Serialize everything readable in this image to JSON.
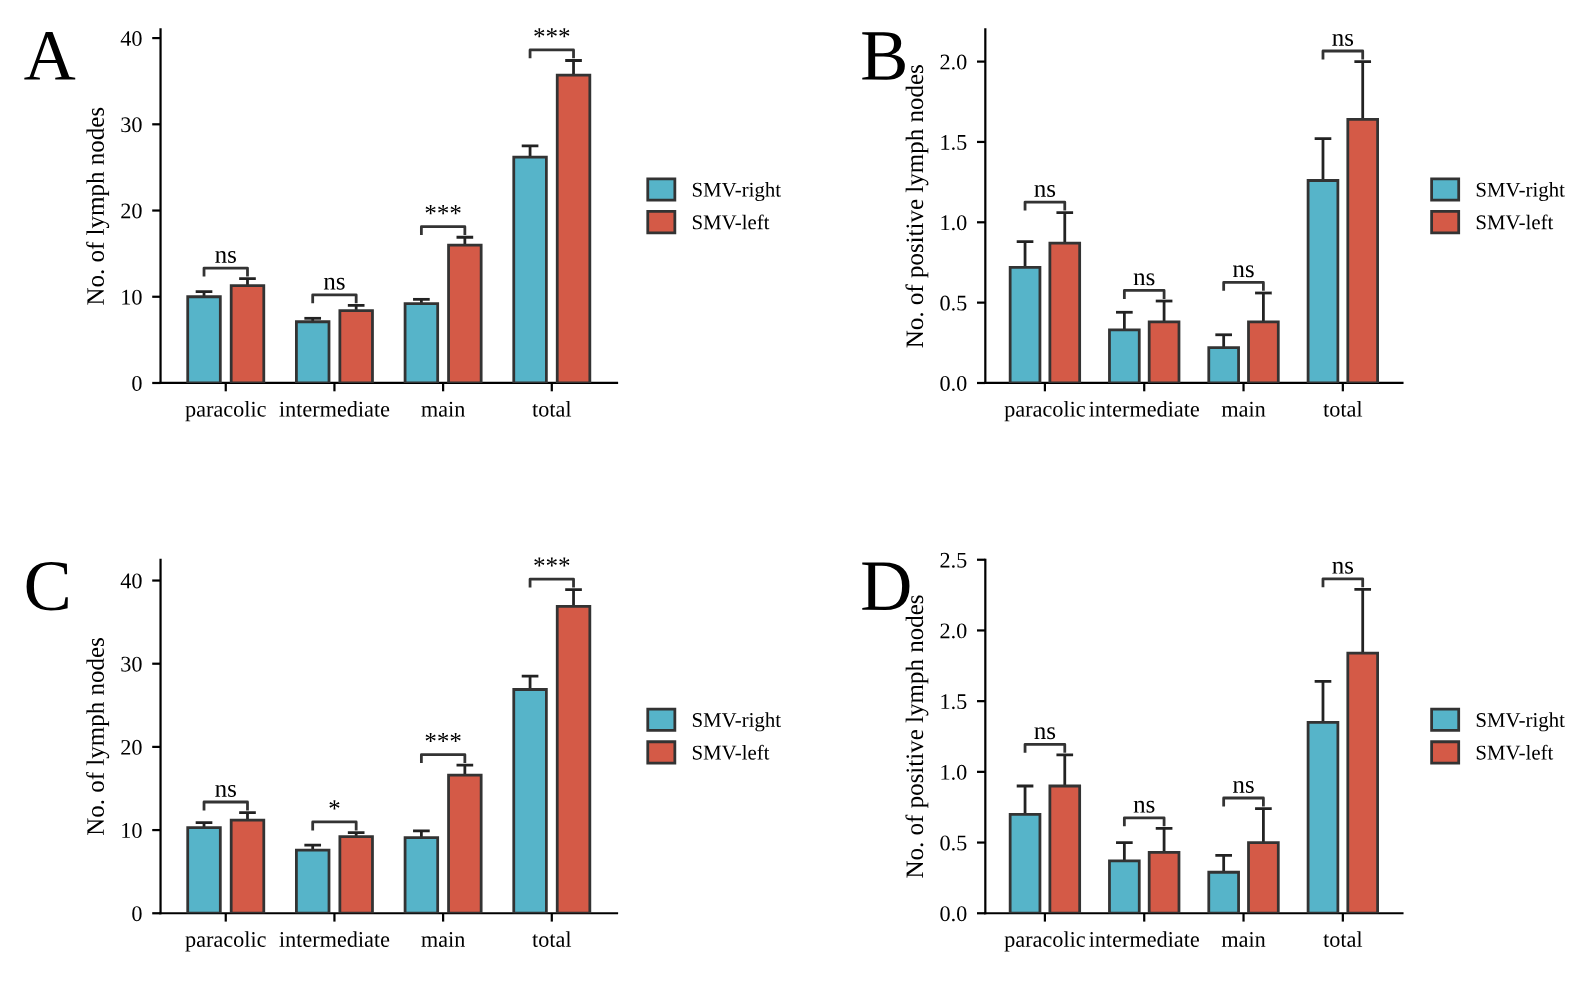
{
  "chart_data": [
    {
      "type": "bar",
      "title": "A",
      "ylabel": "No. of lymph nodes",
      "categories": [
        "paracolic",
        "intermediate",
        "main",
        "total"
      ],
      "ylim": [
        0,
        41
      ],
      "yticks": [
        0,
        10,
        20,
        30,
        40
      ],
      "grid": false,
      "legend": "right",
      "series": [
        {
          "name": "SMV-right",
          "color": "#56b4c9",
          "values": [
            10.0,
            7.1,
            9.2,
            26.2
          ],
          "errors": [
            0.6,
            0.4,
            0.5,
            1.3
          ]
        },
        {
          "name": "SMV-left",
          "color": "#d45a47",
          "values": [
            11.3,
            8.4,
            16.0,
            35.7
          ],
          "errors": [
            0.8,
            0.6,
            0.9,
            1.7
          ]
        }
      ],
      "annotations": [
        "ns",
        "ns",
        "***",
        "***"
      ]
    },
    {
      "type": "bar",
      "title": "B",
      "ylabel": "No. of positive lymph nodes",
      "categories": [
        "paracolic",
        "intermediate",
        "main",
        "total"
      ],
      "ylim": [
        0,
        2.2
      ],
      "yticks": [
        {
          "value": 0,
          "label": "0.0"
        },
        {
          "value": 0.5,
          "label": "0.5"
        },
        {
          "value": 1,
          "label": "1.0"
        },
        {
          "value": 1.5,
          "label": "1.5"
        },
        {
          "value": 2,
          "label": "2.0"
        }
      ],
      "grid": false,
      "legend": "right",
      "series": [
        {
          "name": "SMV-right",
          "color": "#56b4c9",
          "values": [
            0.72,
            0.33,
            0.22,
            1.26
          ],
          "errors": [
            0.16,
            0.11,
            0.08,
            0.26
          ]
        },
        {
          "name": "SMV-left",
          "color": "#d45a47",
          "values": [
            0.87,
            0.38,
            0.38,
            1.64
          ],
          "errors": [
            0.19,
            0.13,
            0.18,
            0.36
          ]
        }
      ],
      "annotations": [
        "ns",
        "ns",
        "ns",
        "ns"
      ]
    },
    {
      "type": "bar",
      "title": "C",
      "ylabel": "No. of lymph nodes",
      "categories": [
        "paracolic",
        "intermediate",
        "main",
        "total"
      ],
      "ylim": [
        0,
        42.5
      ],
      "yticks": [
        0,
        10,
        20,
        30,
        40
      ],
      "grid": false,
      "legend": "right",
      "series": [
        {
          "name": "SMV-right",
          "color": "#56b4c9",
          "values": [
            10.3,
            7.6,
            9.1,
            26.9
          ],
          "errors": [
            0.6,
            0.6,
            0.8,
            1.6
          ]
        },
        {
          "name": "SMV-left",
          "color": "#d45a47",
          "values": [
            11.2,
            9.2,
            16.6,
            36.9
          ],
          "errors": [
            0.9,
            0.5,
            1.2,
            2.0
          ]
        }
      ],
      "annotations": [
        "ns",
        "*",
        "***",
        "***"
      ]
    },
    {
      "type": "bar",
      "title": "D",
      "ylabel": "No. of positive lymph nodes",
      "categories": [
        "paracolic",
        "intermediate",
        "main",
        "total"
      ],
      "ylim": [
        0,
        2.5
      ],
      "yticks": [
        {
          "value": 0,
          "label": "0.0"
        },
        {
          "value": 0.5,
          "label": "0.5"
        },
        {
          "value": 1,
          "label": "1.0"
        },
        {
          "value": 1.5,
          "label": "1.5"
        },
        {
          "value": 2,
          "label": "2.0"
        },
        {
          "value": 2.5,
          "label": "2.5"
        }
      ],
      "grid": false,
      "legend": "right",
      "series": [
        {
          "name": "SMV-right",
          "color": "#56b4c9",
          "values": [
            0.7,
            0.37,
            0.29,
            1.35
          ],
          "errors": [
            0.2,
            0.13,
            0.12,
            0.29
          ]
        },
        {
          "name": "SMV-left",
          "color": "#d45a47",
          "values": [
            0.9,
            0.43,
            0.5,
            1.84
          ],
          "errors": [
            0.22,
            0.17,
            0.24,
            0.45
          ]
        }
      ],
      "annotations": [
        "ns",
        "ns",
        "ns",
        "ns"
      ]
    }
  ]
}
